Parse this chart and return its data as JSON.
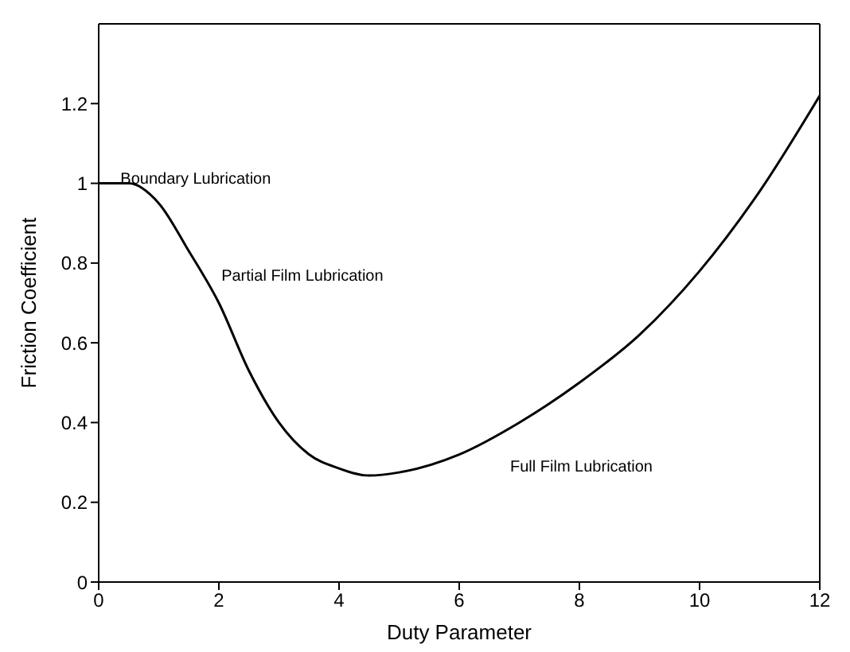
{
  "chart_data": {
    "type": "line",
    "xlabel": "Duty Parameter",
    "ylabel": "Friction Coefficient",
    "x": [
      0,
      0.25,
      0.5,
      1,
      1.5,
      2,
      2.5,
      3,
      3.5,
      4,
      4.5,
      5,
      6,
      7,
      8,
      9,
      10,
      11,
      12
    ],
    "series": [
      {
        "color": "#000000",
        "values": [
          1,
          1,
          1,
          0.95,
          0.83,
          0.7,
          0.53,
          0.4,
          0.32,
          0.285,
          0.267,
          0.275,
          0.32,
          0.4,
          0.5,
          0.62,
          0.78,
          0.98,
          1.22
        ]
      }
    ],
    "xlim": [
      0,
      12
    ],
    "xticks": [
      0,
      2,
      4,
      6,
      8,
      10,
      12
    ],
    "ylim": [
      0,
      1.4
    ],
    "yticks": [
      0,
      0.2,
      0.4,
      0.6,
      0.8,
      1,
      1.2
    ],
    "grid": false,
    "legend": false,
    "marker": "none",
    "line_style": "solid",
    "annotations": [
      "Boundary Lubrication",
      "Partial Film Lubrication",
      "Full Film Lubrication"
    ]
  }
}
